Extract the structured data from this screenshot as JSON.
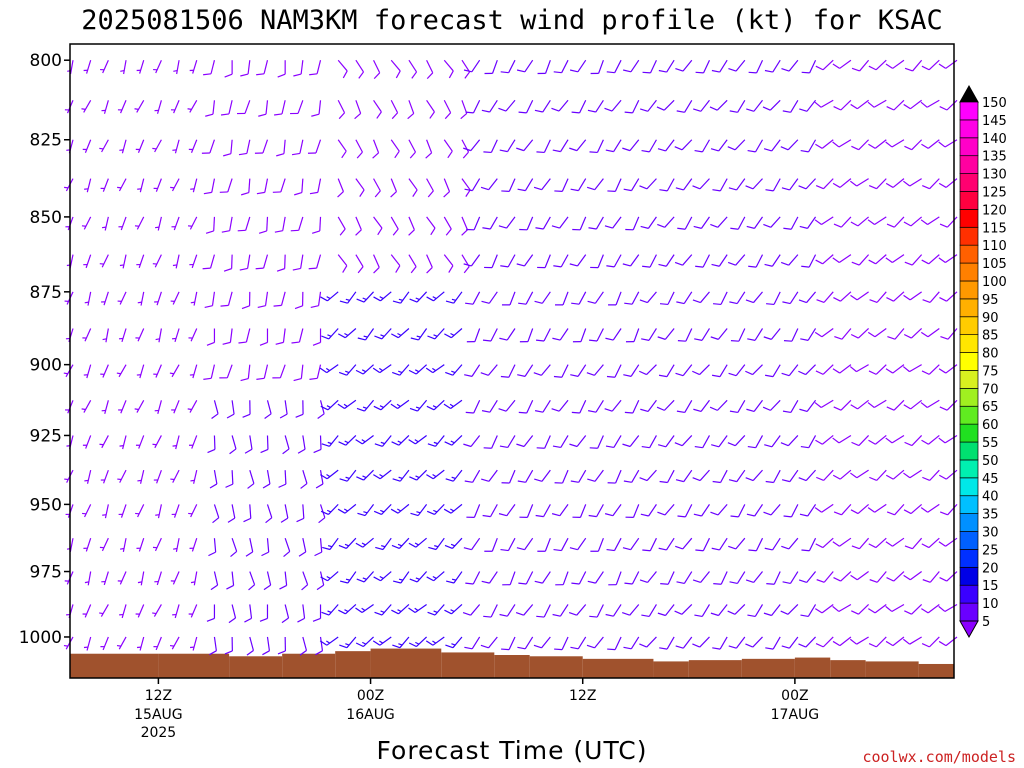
{
  "chart_data": {
    "type": "wind-barb-time-height",
    "title": "2025081506 NAM3KM forecast wind profile (kt) for KSAC",
    "xlabel": "Forecast Time (UTC)",
    "ylabel": "",
    "ylim": [
      1016,
      795
    ],
    "yscale": "log-pressure",
    "xlim": [
      7,
      57
    ],
    "y_ticks": [
      800,
      825,
      850,
      875,
      900,
      925,
      950,
      975,
      1000
    ],
    "x_ticks": [
      {
        "hour": 12,
        "label": "12Z",
        "sub": [
          "15AUG",
          "2025"
        ]
      },
      {
        "hour": 24,
        "label": "00Z",
        "sub": [
          "16AUG"
        ]
      },
      {
        "hour": 36,
        "label": "12Z",
        "sub": []
      },
      {
        "hour": 48,
        "label": "00Z",
        "sub": [
          "17AUG"
        ]
      },
      {
        "hour": 60,
        "label": "12Z",
        "sub": []
      }
    ],
    "grid": false,
    "wind_units": "kt",
    "colorbar": {
      "placement": "right",
      "labels": [
        5,
        10,
        15,
        20,
        25,
        30,
        35,
        40,
        45,
        50,
        55,
        60,
        65,
        70,
        75,
        80,
        85,
        90,
        95,
        100,
        105,
        110,
        115,
        120,
        125,
        130,
        135,
        140,
        145,
        150
      ],
      "colors": [
        "#8b00ff",
        "#6a00ff",
        "#3a00ff",
        "#0000e6",
        "#0030ff",
        "#0060ff",
        "#0090ff",
        "#00c0ff",
        "#00e8e8",
        "#00f0b0",
        "#00e070",
        "#20e020",
        "#60ec20",
        "#a0f020",
        "#d8f020",
        "#ffff00",
        "#ffe600",
        "#ffcc00",
        "#ffb000",
        "#ff9900",
        "#ff8000",
        "#ff6000",
        "#ff3000",
        "#ff0000",
        "#ff0040",
        "#ff0070",
        "#ff00a0",
        "#ff00c8",
        "#ff00e6",
        "#ff00ff"
      ]
    },
    "terrain": {
      "color": "#a0522d",
      "segments": [
        {
          "from": 7,
          "to": 12,
          "top_hpa": 1006.5
        },
        {
          "from": 12,
          "to": 16,
          "top_hpa": 1006.5
        },
        {
          "from": 16,
          "to": 19,
          "top_hpa": 1007.5
        },
        {
          "from": 19,
          "to": 22,
          "top_hpa": 1006.5
        },
        {
          "from": 22,
          "to": 24,
          "top_hpa": 1005.5
        },
        {
          "from": 24,
          "to": 28,
          "top_hpa": 1004.5
        },
        {
          "from": 28,
          "to": 31,
          "top_hpa": 1006
        },
        {
          "from": 31,
          "to": 33,
          "top_hpa": 1007
        },
        {
          "from": 33,
          "to": 36,
          "top_hpa": 1007.5
        },
        {
          "from": 36,
          "to": 40,
          "top_hpa": 1008.5
        },
        {
          "from": 40,
          "to": 42,
          "top_hpa": 1009.5
        },
        {
          "from": 42,
          "to": 45,
          "top_hpa": 1009
        },
        {
          "from": 45,
          "to": 48,
          "top_hpa": 1008.5
        },
        {
          "from": 48,
          "to": 50,
          "top_hpa": 1008
        },
        {
          "from": 50,
          "to": 52,
          "top_hpa": 1009
        },
        {
          "from": 52,
          "to": 55,
          "top_hpa": 1009.5
        },
        {
          "from": 55,
          "to": 57,
          "top_hpa": 1010.5
        }
      ]
    },
    "profile_hours": [
      7,
      8,
      9,
      10,
      11,
      12,
      13,
      14,
      15,
      16,
      17,
      18,
      19,
      20,
      21,
      22,
      23,
      24,
      25,
      26,
      27,
      28,
      29,
      30,
      31,
      32,
      33,
      34,
      35,
      36,
      37,
      38,
      39,
      40,
      41,
      42,
      43,
      44,
      45,
      46,
      47,
      48,
      49,
      50,
      51,
      52,
      53,
      54,
      55,
      56,
      57
    ],
    "profile_levels": [
      800,
      812.5,
      825,
      837.5,
      850,
      862.5,
      875,
      887.5,
      900,
      912.5,
      925,
      937.5,
      950,
      962.5,
      975,
      987.5,
      1000
    ],
    "wind_regimes": [
      {
        "hours": [
          7,
          15
        ],
        "levels": [
          800,
          1000
        ],
        "dir_deg": 200,
        "speed_kt": 6
      },
      {
        "hours": [
          15,
          22
        ],
        "levels": [
          800,
          900
        ],
        "dir_deg": 190,
        "speed_kt": 8
      },
      {
        "hours": [
          15,
          22
        ],
        "levels": [
          900,
          1000
        ],
        "dir_deg": 170,
        "speed_kt": 12
      },
      {
        "hours": [
          22,
          30
        ],
        "levels": [
          800,
          870
        ],
        "dir_deg": 150,
        "speed_kt": 8
      },
      {
        "hours": [
          22,
          30
        ],
        "levels": [
          870,
          1000
        ],
        "dir_deg": 225,
        "speed_kt": 15
      },
      {
        "hours": [
          30,
          40
        ],
        "levels": [
          800,
          1000
        ],
        "dir_deg": 210,
        "speed_kt": 10
      },
      {
        "hours": [
          40,
          50
        ],
        "levels": [
          800,
          1000
        ],
        "dir_deg": 215,
        "speed_kt": 10
      },
      {
        "hours": [
          50,
          57
        ],
        "levels": [
          800,
          1000
        ],
        "dir_deg": 230,
        "speed_kt": 8
      }
    ]
  },
  "credit": "coolwx.com/models"
}
